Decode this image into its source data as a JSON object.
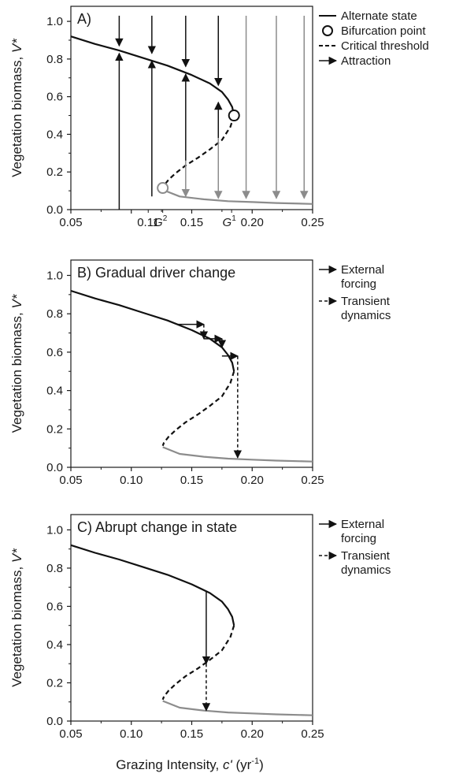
{
  "colors": {
    "upper": "#111111",
    "lower": "#8c8c8c",
    "threshold": "#111111",
    "axis": "#1a1a1a"
  },
  "shared": {
    "ylabel_main": "Vegetation biomass, ",
    "ylabel_italic": "V*",
    "xlabel_main": "Grazing Intensity, ",
    "xlabel_italic": "c'",
    "xlabel_unit": " (yr",
    "xlabel_sup": "-1",
    "xlabel_close": ")"
  },
  "chart_data": [
    {
      "panel": "A",
      "type": "line",
      "title": "A)",
      "xlim": [
        0.05,
        0.25
      ],
      "ylim": [
        0.0,
        1.08
      ],
      "xticks": [
        "0.05",
        "0.10",
        "0.15",
        "0.20",
        "0.25"
      ],
      "xtick_values": [
        0.05,
        0.1,
        0.15,
        0.2,
        0.25
      ],
      "xtick_labels_shown": [
        "0.05",
        "",
        "0.15",
        "0.20",
        "0.25"
      ],
      "yticks": [
        "0.0",
        "0.2",
        "0.4",
        "0.6",
        "0.8",
        "1.0"
      ],
      "ytick_values": [
        0.0,
        0.2,
        0.4,
        0.6,
        0.8,
        1.0
      ],
      "special_ticks": [
        {
          "value": 0.114,
          "label": "0.11"
        },
        {
          "value": 0.126,
          "label": "G",
          "sup": "2"
        },
        {
          "value": 0.183,
          "label": "G",
          "sup": "1"
        }
      ],
      "legend_position": "right",
      "legend": [
        {
          "label": "Alternate state",
          "symbol": "solid-line"
        },
        {
          "label": "Bifurcation point",
          "symbol": "open-circle"
        },
        {
          "label": "Critical threshold",
          "symbol": "dashed-line"
        },
        {
          "label": "Attraction",
          "symbol": "arrow"
        }
      ],
      "series": [
        {
          "name": "Alternate state",
          "style": "solid",
          "color": "upper",
          "x": [
            0.05,
            0.07,
            0.09,
            0.11,
            0.13,
            0.15,
            0.165,
            0.175,
            0.18,
            0.1835,
            0.185
          ],
          "y": [
            0.92,
            0.88,
            0.845,
            0.805,
            0.765,
            0.715,
            0.67,
            0.625,
            0.585,
            0.545,
            0.5
          ]
        },
        {
          "name": "Critical threshold",
          "style": "dashed",
          "color": "threshold",
          "x": [
            0.185,
            0.182,
            0.175,
            0.165,
            0.155,
            0.145,
            0.137,
            0.131,
            0.127,
            0.126
          ],
          "y": [
            0.5,
            0.44,
            0.37,
            0.32,
            0.275,
            0.235,
            0.195,
            0.16,
            0.128,
            0.112
          ]
        },
        {
          "name": "Alternate state (low)",
          "style": "solid",
          "color": "lower",
          "x": [
            0.126,
            0.14,
            0.16,
            0.18,
            0.2,
            0.22,
            0.25
          ],
          "y": [
            0.105,
            0.07,
            0.055,
            0.045,
            0.04,
            0.035,
            0.03
          ]
        }
      ],
      "bifurcation_points": [
        {
          "x": 0.185,
          "y": 0.5,
          "color": "upper"
        },
        {
          "x": 0.126,
          "y": 0.115,
          "color": "lower"
        }
      ],
      "arrows": [
        {
          "x": 0.09,
          "y0": 1.03,
          "y1": 0.87,
          "style": "solid",
          "color": "upper"
        },
        {
          "x": 0.09,
          "y0": 0.0,
          "y1": 0.83,
          "style": "solid",
          "color": "upper"
        },
        {
          "x": 0.117,
          "y0": 1.03,
          "y1": 0.83,
          "style": "solid",
          "color": "upper"
        },
        {
          "x": 0.117,
          "y0": 0.07,
          "y1": 0.79,
          "style": "solid",
          "color": "upper"
        },
        {
          "x": 0.145,
          "y0": 1.03,
          "y1": 0.76,
          "style": "solid",
          "color": "upper"
        },
        {
          "x": 0.145,
          "y0": 0.26,
          "y1": 0.72,
          "style": "solid",
          "color": "upper"
        },
        {
          "x": 0.145,
          "y0": 0.26,
          "y1": 0.07,
          "style": "solid",
          "color": "lower"
        },
        {
          "x": 0.172,
          "y0": 1.03,
          "y1": 0.66,
          "style": "solid",
          "color": "upper"
        },
        {
          "x": 0.172,
          "y0": 0.38,
          "y1": 0.57,
          "style": "solid",
          "color": "upper"
        },
        {
          "x": 0.172,
          "y0": 0.38,
          "y1": 0.06,
          "style": "solid",
          "color": "lower"
        },
        {
          "x": 0.195,
          "y0": 1.03,
          "y1": 0.06,
          "style": "solid",
          "color": "lower"
        },
        {
          "x": 0.22,
          "y0": 1.03,
          "y1": 0.06,
          "style": "solid",
          "color": "lower"
        },
        {
          "x": 0.243,
          "y0": 1.03,
          "y1": 0.06,
          "style": "solid",
          "color": "lower"
        }
      ]
    },
    {
      "panel": "B",
      "type": "line",
      "title": "B) Gradual driver change",
      "xlim": [
        0.05,
        0.25
      ],
      "ylim": [
        0.0,
        1.08
      ],
      "xticks": [
        "0.05",
        "0.10",
        "0.15",
        "0.20",
        "0.25"
      ],
      "xtick_values": [
        0.05,
        0.1,
        0.15,
        0.2,
        0.25
      ],
      "xtick_labels_shown": [
        "0.05",
        "0.10",
        "0.15",
        "0.20",
        "0.25"
      ],
      "yticks": [
        "0.0",
        "0.2",
        "0.4",
        "0.6",
        "0.8",
        "1.0"
      ],
      "ytick_values": [
        0.0,
        0.2,
        0.4,
        0.6,
        0.8,
        1.0
      ],
      "legend_position": "right",
      "legend": [
        {
          "label": "External",
          "label2": "forcing",
          "symbol": "arrow"
        },
        {
          "label": "Transient",
          "label2": "dynamics",
          "symbol": "dashed-arrow"
        }
      ],
      "series": [
        {
          "name": "Alternate state",
          "style": "solid",
          "color": "upper",
          "x": [
            0.05,
            0.07,
            0.09,
            0.11,
            0.13,
            0.15,
            0.165,
            0.175,
            0.18,
            0.1835,
            0.185
          ],
          "y": [
            0.92,
            0.88,
            0.845,
            0.805,
            0.765,
            0.715,
            0.67,
            0.625,
            0.585,
            0.545,
            0.5
          ]
        },
        {
          "name": "Critical threshold",
          "style": "dashed",
          "color": "threshold",
          "x": [
            0.185,
            0.182,
            0.175,
            0.165,
            0.155,
            0.145,
            0.137,
            0.131,
            0.127,
            0.126
          ],
          "y": [
            0.5,
            0.44,
            0.37,
            0.32,
            0.275,
            0.235,
            0.195,
            0.16,
            0.128,
            0.112
          ]
        },
        {
          "name": "Alternate state (low)",
          "style": "solid",
          "color": "lower",
          "x": [
            0.126,
            0.14,
            0.16,
            0.18,
            0.2,
            0.22,
            0.25
          ],
          "y": [
            0.105,
            0.07,
            0.055,
            0.045,
            0.04,
            0.035,
            0.03
          ]
        }
      ],
      "arrows": [
        {
          "x0": 0.138,
          "y0": 0.745,
          "x1": 0.16,
          "y1": 0.745,
          "style": "solid"
        },
        {
          "x0": 0.16,
          "y0": 0.745,
          "x1": 0.16,
          "y1": 0.67,
          "style": "dashed"
        },
        {
          "x0": 0.16,
          "y0": 0.67,
          "x1": 0.175,
          "y1": 0.67,
          "style": "solid"
        },
        {
          "x0": 0.175,
          "y0": 0.67,
          "x1": 0.175,
          "y1": 0.625,
          "style": "dashed"
        },
        {
          "x0": 0.175,
          "y0": 0.58,
          "x1": 0.188,
          "y1": 0.58,
          "style": "solid"
        },
        {
          "x0": 0.188,
          "y0": 0.58,
          "x1": 0.188,
          "y1": 0.05,
          "style": "dashed"
        }
      ]
    },
    {
      "panel": "C",
      "type": "line",
      "title": "C) Abrupt change in state",
      "xlim": [
        0.05,
        0.25
      ],
      "ylim": [
        0.0,
        1.08
      ],
      "xticks": [
        "0.05",
        "0.10",
        "0.15",
        "0.20",
        "0.25"
      ],
      "xtick_values": [
        0.05,
        0.1,
        0.15,
        0.2,
        0.25
      ],
      "xtick_labels_shown": [
        "0.05",
        "0.10",
        "0.15",
        "0.20",
        "0.25"
      ],
      "yticks": [
        "0.0",
        "0.2",
        "0.4",
        "0.6",
        "0.8",
        "1.0"
      ],
      "ytick_values": [
        0.0,
        0.2,
        0.4,
        0.6,
        0.8,
        1.0
      ],
      "legend_position": "right",
      "legend": [
        {
          "label": "External",
          "label2": "forcing",
          "symbol": "arrow"
        },
        {
          "label": "Transient",
          "label2": "dynamics",
          "symbol": "dashed-arrow"
        }
      ],
      "series": [
        {
          "name": "Alternate state",
          "style": "solid",
          "color": "upper",
          "x": [
            0.05,
            0.07,
            0.09,
            0.11,
            0.13,
            0.15,
            0.165,
            0.175,
            0.18,
            0.1835,
            0.185
          ],
          "y": [
            0.92,
            0.88,
            0.845,
            0.805,
            0.765,
            0.715,
            0.67,
            0.625,
            0.585,
            0.545,
            0.5
          ]
        },
        {
          "name": "Critical threshold",
          "style": "dashed",
          "color": "threshold",
          "x": [
            0.185,
            0.182,
            0.175,
            0.165,
            0.155,
            0.145,
            0.137,
            0.131,
            0.127,
            0.126
          ],
          "y": [
            0.5,
            0.44,
            0.37,
            0.32,
            0.275,
            0.235,
            0.195,
            0.16,
            0.128,
            0.112
          ]
        },
        {
          "name": "Alternate state (low)",
          "style": "solid",
          "color": "lower",
          "x": [
            0.126,
            0.14,
            0.16,
            0.18,
            0.2,
            0.22,
            0.25
          ],
          "y": [
            0.105,
            0.07,
            0.055,
            0.045,
            0.04,
            0.035,
            0.03
          ]
        }
      ],
      "arrows": [
        {
          "x0": 0.162,
          "y0": 0.68,
          "x1": 0.162,
          "y1": 0.3,
          "style": "solid"
        },
        {
          "x0": 0.162,
          "y0": 0.3,
          "x1": 0.162,
          "y1": 0.055,
          "style": "dashed"
        }
      ]
    }
  ]
}
